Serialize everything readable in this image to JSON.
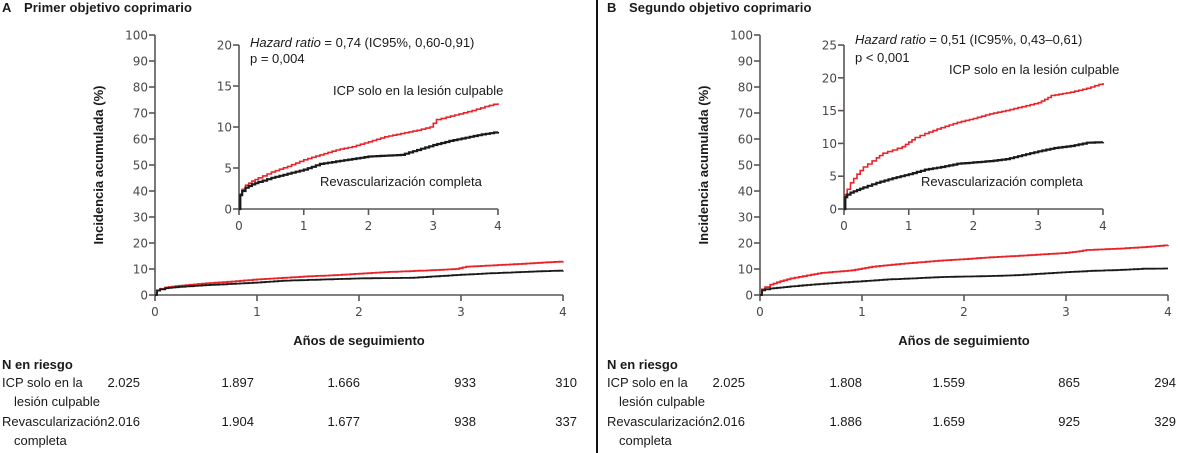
{
  "panels": [
    {
      "letter": "A",
      "title": "Primer objetivo coprimario",
      "chart_data": {
        "type": "line",
        "title": "Primer objetivo coprimario",
        "xlabel": "Años de seguimiento",
        "ylabel": "Incidencia acumulada (%)",
        "xlim": [
          0,
          4
        ],
        "ylim": [
          0,
          100
        ],
        "xticks": [
          "0",
          "1",
          "2",
          "3",
          "4"
        ],
        "yticks": [
          "0",
          "10",
          "20",
          "30",
          "40",
          "50",
          "60",
          "70",
          "80",
          "90",
          "100"
        ],
        "grid": false,
        "series": [
          {
            "name": "ICP solo en la lesión culpable",
            "color": "#e8242a",
            "x": [
              0,
              0.02,
              0.05,
              0.1,
              0.2,
              0.3,
              0.5,
              0.75,
              1.0,
              1.25,
              1.5,
              1.75,
              2.0,
              2.25,
              2.5,
              2.75,
              2.95,
              3.05,
              3.2,
              3.4,
              3.6,
              3.8,
              4.0
            ],
            "y": [
              0,
              1.8,
              2.4,
              2.9,
              3.4,
              3.8,
              4.5,
              5.2,
              6.0,
              6.6,
              7.2,
              7.6,
              8.2,
              8.8,
              9.2,
              9.6,
              10.0,
              10.9,
              11.2,
              11.6,
              12.0,
              12.5,
              12.9
            ]
          },
          {
            "name": "Revascularización completa",
            "color": "#1a1a1a",
            "x": [
              0,
              0.02,
              0.05,
              0.1,
              0.2,
              0.3,
              0.5,
              0.75,
              1.0,
              1.25,
              1.5,
              1.75,
              2.0,
              2.25,
              2.5,
              2.75,
              3.0,
              3.25,
              3.5,
              3.75,
              4.0
            ],
            "y": [
              0,
              1.7,
              2.2,
              2.6,
              3.0,
              3.3,
              3.8,
              4.3,
              4.8,
              5.5,
              5.8,
              6.1,
              6.4,
              6.5,
              6.6,
              7.2,
              7.8,
              8.3,
              8.7,
              9.1,
              9.4
            ]
          }
        ],
        "inset": {
          "xlim": [
            0,
            4
          ],
          "ylim": [
            0,
            20
          ],
          "xticks": [
            "0",
            "1",
            "2",
            "3",
            "4"
          ],
          "yticks": [
            "0",
            "5",
            "10",
            "15",
            "20"
          ]
        },
        "annotations": {
          "hr_label": "Hazard ratio",
          "hr_value": " = 0,74 (IC95%, 0,60-0,91)",
          "p_value": "p = 0,004",
          "red_label": "ICP solo en la lesión culpable",
          "black_label": "Revascularización completa"
        }
      },
      "risk_table": {
        "header": "N en riesgo",
        "rows": [
          {
            "label_line1": "ICP solo en la",
            "label_line2": "lesión culpable",
            "values": [
              "2.025",
              "1.897",
              "1.666",
              "933",
              "310"
            ]
          },
          {
            "label_line1": "Revascularización",
            "label_line2": "completa",
            "values": [
              "2.016",
              "1.904",
              "1.677",
              "938",
              "337"
            ]
          }
        ]
      }
    },
    {
      "letter": "B",
      "title": "Segundo objetivo coprimario",
      "chart_data": {
        "type": "line",
        "title": "Segundo objetivo coprimario",
        "xlabel": "Años de seguimiento",
        "ylabel": "Incidencia acumulada (%)",
        "xlim": [
          0,
          4
        ],
        "ylim": [
          0,
          100
        ],
        "xticks": [
          "0",
          "1",
          "2",
          "3",
          "4"
        ],
        "yticks": [
          "0",
          "10",
          "20",
          "30",
          "40",
          "50",
          "60",
          "70",
          "80",
          "90",
          "100"
        ],
        "grid": false,
        "series": [
          {
            "name": "ICP solo en la lesión culpable",
            "color": "#e8242a",
            "x": [
              0,
              0.02,
              0.05,
              0.1,
              0.2,
              0.3,
              0.5,
              0.6,
              0.75,
              0.9,
              1.0,
              1.1,
              1.25,
              1.5,
              1.75,
              2.0,
              2.25,
              2.5,
              2.75,
              3.0,
              3.1,
              3.2,
              3.5,
              3.75,
              4.0
            ],
            "y": [
              0,
              2.2,
              3.0,
              4.0,
              5.3,
              6.4,
              7.8,
              8.5,
              9.0,
              9.5,
              10.2,
              10.9,
              11.5,
              12.4,
              13.2,
              13.8,
              14.5,
              15.0,
              15.6,
              16.2,
              16.7,
              17.3,
              17.8,
              18.4,
              19.2
            ]
          },
          {
            "name": "Revascularización completa",
            "color": "#1a1a1a",
            "x": [
              0,
              0.02,
              0.05,
              0.1,
              0.2,
              0.3,
              0.5,
              0.75,
              1.0,
              1.25,
              1.5,
              1.75,
              2.0,
              2.25,
              2.5,
              2.75,
              3.0,
              3.25,
              3.5,
              3.75,
              4.0
            ],
            "y": [
              0,
              1.8,
              2.2,
              2.5,
              2.9,
              3.3,
              4.0,
              4.7,
              5.3,
              6.0,
              6.4,
              6.9,
              7.1,
              7.3,
              7.6,
              8.2,
              8.8,
              9.3,
              9.6,
              10.1,
              10.2
            ]
          }
        ],
        "inset": {
          "xlim": [
            0,
            4
          ],
          "ylim": [
            0,
            25
          ],
          "xticks": [
            "0",
            "1",
            "2",
            "3",
            "4"
          ],
          "yticks": [
            "0",
            "5",
            "10",
            "15",
            "20",
            "25"
          ]
        },
        "annotations": {
          "hr_label": "Hazard ratio",
          "hr_value": " = 0,51 (IC95%, 0,43–0,61)",
          "p_value": "p < 0,001",
          "red_label": "ICP solo en la lesión culpable",
          "black_label": "Revascularización completa"
        }
      },
      "risk_table": {
        "header": "N en riesgo",
        "rows": [
          {
            "label_line1": "ICP solo en la",
            "label_line2": "lesión culpable",
            "values": [
              "2.025",
              "1.808",
              "1.559",
              "865",
              "294"
            ]
          },
          {
            "label_line1": "Revascularización",
            "label_line2": "completa",
            "values": [
              "2.016",
              "1.886",
              "1.659",
              "925",
              "329"
            ]
          }
        ]
      }
    }
  ]
}
